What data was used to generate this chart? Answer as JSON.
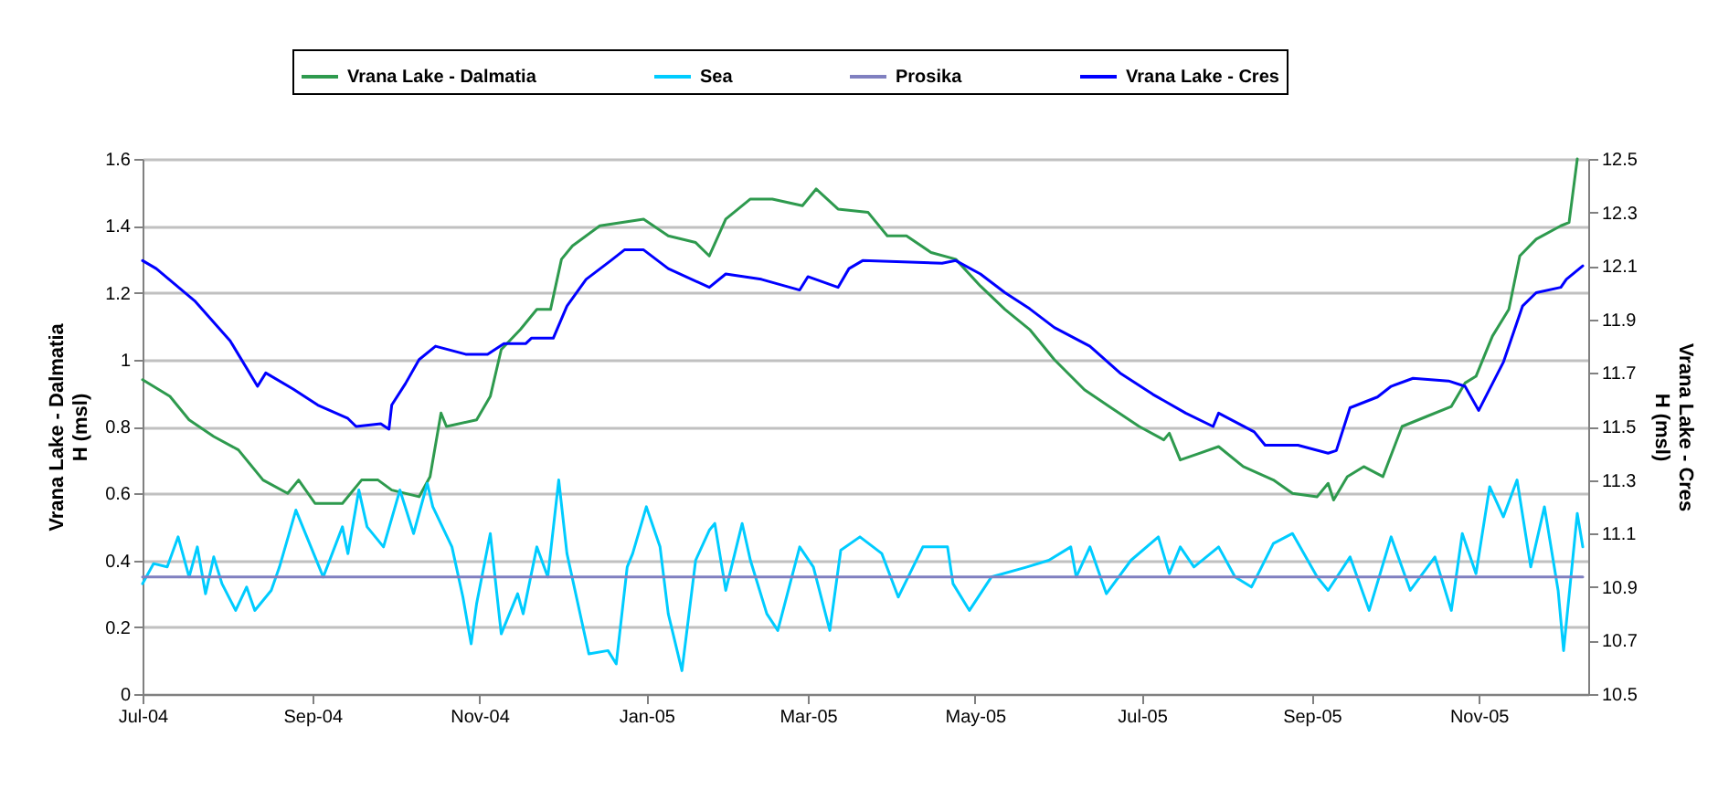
{
  "chart_data": {
    "type": "line",
    "ylabel": "Vrana Lake - Dalmatia\nH (msl)",
    "y2label": "Vrana Lake - Cres\nH (msl)",
    "xlim": [
      "2004-07-01",
      "2005-12-11"
    ],
    "xticks": [
      {
        "value": "2004-07-01",
        "label": "Jul-04"
      },
      {
        "value": "2004-09-01",
        "label": "Sep-04"
      },
      {
        "value": "2004-11-01",
        "label": "Nov-04"
      },
      {
        "value": "2005-01-01",
        "label": "Jan-05"
      },
      {
        "value": "2005-03-01",
        "label": "Mar-05"
      },
      {
        "value": "2005-05-01",
        "label": "May-05"
      },
      {
        "value": "2005-07-01",
        "label": "Jul-05"
      },
      {
        "value": "2005-09-01",
        "label": "Sep-05"
      },
      {
        "value": "2005-11-01",
        "label": "Nov-05"
      }
    ],
    "ylim": [
      0,
      1.6
    ],
    "yticks": [
      0,
      0.2,
      0.4,
      0.6,
      0.8,
      1,
      1.2,
      1.4,
      1.6
    ],
    "y2lim": [
      10.5,
      12.5
    ],
    "y2ticks": [
      10.5,
      10.7,
      10.9,
      11.1,
      11.3,
      11.5,
      11.7,
      11.9,
      12.1,
      12.3,
      12.5
    ],
    "grid": "y",
    "legend": "top",
    "series": [
      {
        "name": "Vrana Lake - Dalmatia",
        "color": "#2e9a4e",
        "x": [
          "2004-07-01",
          "2004-07-11",
          "2004-07-18",
          "2004-07-27",
          "2004-08-05",
          "2004-08-14",
          "2004-08-23",
          "2004-08-27",
          "2004-09-02",
          "2004-09-12",
          "2004-09-19",
          "2004-09-25",
          "2004-09-30",
          "2004-10-10",
          "2004-10-14",
          "2004-10-18",
          "2004-10-20",
          "2004-10-31",
          "2004-11-05",
          "2004-11-09",
          "2004-11-16",
          "2004-11-22",
          "2004-11-27",
          "2004-12-01",
          "2004-12-05",
          "2004-12-15",
          "2004-12-31",
          "2005-01-09",
          "2005-01-19",
          "2005-01-24",
          "2005-01-30",
          "2005-02-08",
          "2005-02-16",
          "2005-02-27",
          "2005-03-04",
          "2005-03-12",
          "2005-03-23",
          "2005-03-30",
          "2005-04-06",
          "2005-04-15",
          "2005-04-24",
          "2005-05-03",
          "2005-05-12",
          "2005-05-21",
          "2005-05-30",
          "2005-06-10",
          "2005-06-19",
          "2005-06-30",
          "2005-07-09",
          "2005-07-11",
          "2005-07-15",
          "2005-07-22",
          "2005-07-29",
          "2005-08-07",
          "2005-08-18",
          "2005-08-25",
          "2005-09-03",
          "2005-09-07",
          "2005-09-09",
          "2005-09-14",
          "2005-09-20",
          "2005-09-27",
          "2005-10-04",
          "2005-10-13",
          "2005-10-22",
          "2005-10-27",
          "2005-10-31",
          "2005-11-06",
          "2005-11-12",
          "2005-11-16",
          "2005-11-22",
          "2005-12-01",
          "2005-12-04",
          "2005-12-07"
        ],
        "values": [
          0.94,
          0.89,
          0.82,
          0.77,
          0.73,
          0.64,
          0.6,
          0.64,
          0.57,
          0.57,
          0.64,
          0.64,
          0.61,
          0.59,
          0.65,
          0.84,
          0.8,
          0.82,
          0.89,
          1.03,
          1.09,
          1.15,
          1.15,
          1.3,
          1.34,
          1.4,
          1.42,
          1.37,
          1.35,
          1.31,
          1.42,
          1.48,
          1.48,
          1.46,
          1.51,
          1.45,
          1.44,
          1.37,
          1.37,
          1.32,
          1.3,
          1.22,
          1.15,
          1.09,
          1.0,
          0.91,
          0.86,
          0.8,
          0.76,
          0.78,
          0.7,
          0.72,
          0.74,
          0.68,
          0.64,
          0.6,
          0.59,
          0.63,
          0.58,
          0.65,
          0.68,
          0.65,
          0.8,
          0.83,
          0.86,
          0.93,
          0.95,
          1.07,
          1.15,
          1.31,
          1.36,
          1.4,
          1.41,
          1.6
        ]
      },
      {
        "name": "Sea",
        "color": "#00ccff",
        "x": [
          "2004-07-01",
          "2004-07-05",
          "2004-07-10",
          "2004-07-14",
          "2004-07-18",
          "2004-07-21",
          "2004-07-24",
          "2004-07-27",
          "2004-07-30",
          "2004-08-04",
          "2004-08-08",
          "2004-08-11",
          "2004-08-17",
          "2004-08-20",
          "2004-08-26",
          "2004-09-05",
          "2004-09-12",
          "2004-09-14",
          "2004-09-18",
          "2004-09-21",
          "2004-09-27",
          "2004-10-03",
          "2004-10-08",
          "2004-10-13",
          "2004-10-15",
          "2004-10-22",
          "2004-10-26",
          "2004-10-29",
          "2004-10-31",
          "2004-11-05",
          "2004-11-09",
          "2004-11-15",
          "2004-11-17",
          "2004-11-22",
          "2004-11-26",
          "2004-11-30",
          "2004-12-03",
          "2004-12-11",
          "2004-12-18",
          "2004-12-21",
          "2004-12-25",
          "2004-12-27",
          "2005-01-01",
          "2005-01-06",
          "2005-01-09",
          "2005-01-14",
          "2005-01-19",
          "2005-01-24",
          "2005-01-26",
          "2005-01-30",
          "2005-02-05",
          "2005-02-08",
          "2005-02-14",
          "2005-02-18",
          "2005-02-26",
          "2005-03-03",
          "2005-03-09",
          "2005-03-13",
          "2005-03-20",
          "2005-03-28",
          "2005-04-03",
          "2005-04-12",
          "2005-04-21",
          "2005-04-23",
          "2005-04-29",
          "2005-05-07",
          "2005-05-20",
          "2005-05-28",
          "2005-06-05",
          "2005-06-07",
          "2005-06-12",
          "2005-06-18",
          "2005-06-27",
          "2005-07-07",
          "2005-07-11",
          "2005-07-15",
          "2005-07-20",
          "2005-07-29",
          "2005-08-04",
          "2005-08-10",
          "2005-08-18",
          "2005-08-25",
          "2005-09-03",
          "2005-09-07",
          "2005-09-15",
          "2005-09-22",
          "2005-09-30",
          "2005-10-07",
          "2005-10-16",
          "2005-10-22",
          "2005-10-26",
          "2005-10-31",
          "2005-11-05",
          "2005-11-10",
          "2005-11-15",
          "2005-11-20",
          "2005-11-25",
          "2005-11-30",
          "2005-12-02",
          "2005-12-07",
          "2005-12-09"
        ],
        "values": [
          0.33,
          0.39,
          0.38,
          0.47,
          0.35,
          0.44,
          0.3,
          0.41,
          0.33,
          0.25,
          0.32,
          0.25,
          0.31,
          0.38,
          0.55,
          0.35,
          0.5,
          0.42,
          0.61,
          0.5,
          0.44,
          0.61,
          0.48,
          0.63,
          0.56,
          0.44,
          0.29,
          0.15,
          0.27,
          0.48,
          0.18,
          0.3,
          0.24,
          0.44,
          0.35,
          0.64,
          0.42,
          0.12,
          0.13,
          0.09,
          0.38,
          0.42,
          0.56,
          0.44,
          0.24,
          0.07,
          0.4,
          0.49,
          0.51,
          0.31,
          0.51,
          0.4,
          0.24,
          0.19,
          0.44,
          0.38,
          0.19,
          0.43,
          0.47,
          0.42,
          0.29,
          0.44,
          0.44,
          0.33,
          0.25,
          0.35,
          0.38,
          0.4,
          0.44,
          0.35,
          0.44,
          0.3,
          0.4,
          0.47,
          0.36,
          0.44,
          0.38,
          0.44,
          0.35,
          0.32,
          0.45,
          0.48,
          0.35,
          0.31,
          0.41,
          0.25,
          0.47,
          0.31,
          0.41,
          0.25,
          0.48,
          0.36,
          0.62,
          0.53,
          0.64,
          0.38,
          0.56,
          0.31,
          0.13,
          0.54,
          0.44
        ]
      },
      {
        "name": "Prosika",
        "color": "#8080c0",
        "x": [
          "2004-07-01",
          "2005-12-09"
        ],
        "values": [
          0.35,
          0.35
        ]
      },
      {
        "name": "Vrana Lake - Cres",
        "color": "#0000ff",
        "axis": "y2",
        "x": [
          "2004-07-01",
          "2004-07-06",
          "2004-07-20",
          "2004-08-02",
          "2004-08-12",
          "2004-08-15",
          "2004-08-25",
          "2004-09-03",
          "2004-09-14",
          "2004-09-17",
          "2004-09-26",
          "2004-09-29",
          "2004-09-30",
          "2004-10-05",
          "2004-10-10",
          "2004-10-16",
          "2004-10-27",
          "2004-11-04",
          "2004-11-10",
          "2004-11-18",
          "2004-11-20",
          "2004-11-28",
          "2004-12-03",
          "2004-12-10",
          "2004-12-19",
          "2004-12-24",
          "2004-12-31",
          "2005-01-09",
          "2005-01-24",
          "2005-01-30",
          "2005-02-12",
          "2005-02-26",
          "2005-03-01",
          "2005-03-12",
          "2005-03-16",
          "2005-03-21",
          "2005-04-19",
          "2005-04-24",
          "2005-05-03",
          "2005-05-12",
          "2005-05-21",
          "2005-05-30",
          "2005-06-12",
          "2005-06-23",
          "2005-07-05",
          "2005-07-17",
          "2005-07-27",
          "2005-07-29",
          "2005-08-11",
          "2005-08-15",
          "2005-08-27",
          "2005-09-07",
          "2005-09-10",
          "2005-09-15",
          "2005-09-25",
          "2005-09-30",
          "2005-10-08",
          "2005-10-21",
          "2005-10-27",
          "2005-11-01",
          "2005-11-10",
          "2005-11-17",
          "2005-11-22",
          "2005-12-01",
          "2005-12-03",
          "2005-12-09"
        ],
        "values": [
          12.12,
          12.09,
          11.97,
          11.82,
          11.65,
          11.7,
          11.64,
          11.58,
          11.53,
          11.5,
          11.51,
          11.49,
          11.58,
          11.66,
          11.75,
          11.8,
          11.77,
          11.77,
          11.81,
          11.81,
          11.83,
          11.83,
          11.95,
          12.05,
          12.12,
          12.16,
          12.16,
          12.09,
          12.02,
          12.07,
          12.05,
          12.01,
          12.06,
          12.02,
          12.09,
          12.12,
          12.11,
          12.12,
          12.07,
          12.0,
          11.94,
          11.87,
          11.8,
          11.7,
          11.62,
          11.55,
          11.5,
          11.55,
          11.48,
          11.43,
          11.43,
          11.4,
          11.41,
          11.57,
          11.61,
          11.65,
          11.68,
          11.67,
          11.65,
          11.56,
          11.74,
          11.95,
          12.0,
          12.02,
          12.05,
          12.1
        ]
      }
    ]
  }
}
